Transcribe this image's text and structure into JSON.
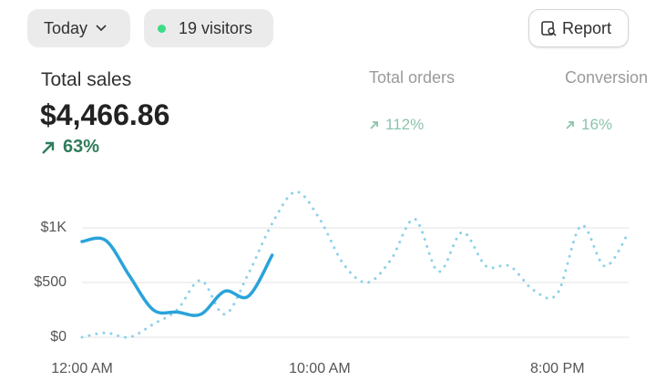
{
  "toolbar": {
    "date_button": "Today",
    "visitors": "19 visitors",
    "report_button": "Report"
  },
  "metrics": [
    {
      "label": "Total sales",
      "value": "$4,466.86",
      "change": "63%"
    },
    {
      "label": "Total orders",
      "change": "112%"
    },
    {
      "label": "Conversion",
      "change": "16%"
    }
  ],
  "chart_data": {
    "type": "line",
    "x": [
      0,
      1,
      2,
      3,
      4,
      5,
      6,
      7,
      8,
      9,
      10,
      11,
      12,
      13,
      14,
      15,
      16,
      17,
      18,
      19,
      20,
      21,
      22,
      23
    ],
    "xlim": [
      0,
      23
    ],
    "xticks": [
      {
        "value": 0,
        "label": "12:00 AM"
      },
      {
        "value": 10,
        "label": "10:00 AM"
      },
      {
        "value": 20,
        "label": "8:00 PM"
      }
    ],
    "ylim": [
      0,
      1400
    ],
    "yticks": [
      {
        "value": 0,
        "label": "$0"
      },
      {
        "value": 500,
        "label": "$500"
      },
      {
        "value": 1000,
        "label": "$1K"
      }
    ],
    "grid": true,
    "series": [
      {
        "color": "#29a3da",
        "style": "solid",
        "values": [
          875,
          885,
          560,
          250,
          230,
          210,
          420,
          375,
          750,
          null,
          null,
          null,
          null,
          null,
          null,
          null,
          null,
          null,
          null,
          null,
          null,
          null,
          null,
          null
        ]
      },
      {
        "color": "#8fd1ea",
        "style": "dotted",
        "values": [
          0,
          40,
          0,
          120,
          250,
          520,
          210,
          580,
          1040,
          1330,
          1080,
          670,
          500,
          710,
          1080,
          600,
          960,
          650,
          650,
          430,
          400,
          1020,
          650,
          960
        ]
      }
    ]
  }
}
